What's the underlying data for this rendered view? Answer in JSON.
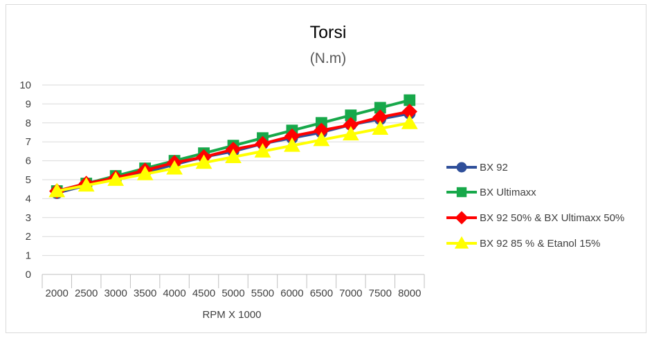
{
  "chart_data": {
    "type": "line",
    "title": "Torsi",
    "subtitle": "(N.m)",
    "xlabel": "RPM X 1000",
    "ylabel": "",
    "categories": [
      "2000",
      "2500",
      "3000",
      "3500",
      "4000",
      "4500",
      "5000",
      "5500",
      "6000",
      "6500",
      "7000",
      "7500",
      "8000"
    ],
    "ylim": [
      0,
      10
    ],
    "yticks": [
      "0",
      "1",
      "2",
      "3",
      "4",
      "5",
      "6",
      "7",
      "8",
      "9",
      "10"
    ],
    "grid": true,
    "legend": "right",
    "series": [
      {
        "name": "BX 92",
        "color": "#2f4f9a",
        "marker": "circle",
        "values": [
          4.3,
          4.7,
          5.1,
          5.4,
          5.8,
          6.2,
          6.5,
          6.9,
          7.2,
          7.5,
          7.9,
          8.2,
          8.5
        ]
      },
      {
        "name": "BX Ultimaxx",
        "color": "#17a84a",
        "marker": "square",
        "values": [
          4.4,
          4.8,
          5.2,
          5.6,
          6.0,
          6.4,
          6.8,
          7.2,
          7.6,
          8.0,
          8.4,
          8.8,
          9.2
        ]
      },
      {
        "name": "BX 92 50% & BX Ultimaxx 50%",
        "color": "#ff0000",
        "marker": "diamond",
        "values": [
          4.4,
          4.8,
          5.1,
          5.5,
          5.9,
          6.2,
          6.6,
          6.9,
          7.3,
          7.6,
          7.9,
          8.3,
          8.6
        ]
      },
      {
        "name": "BX 92 85 % & Etanol 15%",
        "color": "#ffff00",
        "marker": "triangle",
        "values": [
          4.4,
          4.7,
          5.0,
          5.3,
          5.6,
          5.9,
          6.2,
          6.5,
          6.8,
          7.1,
          7.4,
          7.7,
          8.0
        ]
      }
    ]
  }
}
